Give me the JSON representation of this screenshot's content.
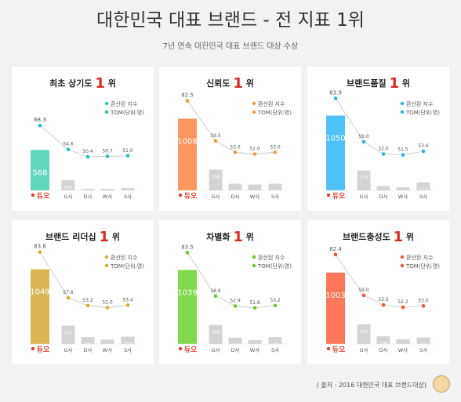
{
  "header": {
    "title": "대한민국 대표 브랜드 - 전 지표 1위",
    "subtitle": "7년 연속 대한민국 대표 브랜드 대상 수상"
  },
  "legend": {
    "index_label": "환산된 지수",
    "tom_label": "TOM(단위:명)"
  },
  "footer": {
    "source": "( 출처 : 2016 대한민국 대표 브랜드대상)"
  },
  "brand_logo": "듀오",
  "chart_data": [
    {
      "type": "bar",
      "title": "최초 상기도",
      "rank": "1",
      "rank_suffix": "위",
      "categories": [
        "",
        "G사",
        "D사",
        "W사",
        "S사"
      ],
      "series": [
        {
          "name": "TOM(단위:명)",
          "values": [
            568,
            144,
            12,
            21,
            31
          ]
        },
        {
          "name": "환산된 지수",
          "values": [
            68.3,
            54.6,
            50.4,
            50.7,
            51.0
          ]
        }
      ],
      "colors": {
        "main_bar": "#5fd7bd",
        "dot": "#20c4c0",
        "other_bar": "#d4d4d4"
      }
    },
    {
      "type": "bar",
      "title": "신뢰도",
      "rank": "1",
      "rank_suffix": "위",
      "categories": [
        "",
        "G사",
        "D사",
        "W사",
        "S사"
      ],
      "series": [
        {
          "name": "TOM(단위:명)",
          "values": [
            1008,
            294,
            93,
            82,
            93
          ]
        },
        {
          "name": "환산된 지수",
          "values": [
            82.5,
            59.5,
            53.0,
            52.0,
            53.0
          ]
        }
      ],
      "colors": {
        "main_bar": "#ff965f",
        "dot": "#f79a3b",
        "other_bar": "#d4d4d4"
      }
    },
    {
      "type": "bar",
      "title": "브랜드품질",
      "rank": "1",
      "rank_suffix": "위",
      "categories": [
        "",
        "G사",
        "D사",
        "W사",
        "S사"
      ],
      "series": [
        {
          "name": "TOM(단위:명)",
          "values": [
            1050,
            279,
            62,
            46,
            113
          ]
        },
        {
          "name": "환산된 지수",
          "values": [
            83.9,
            59.0,
            52.0,
            51.5,
            53.6
          ]
        }
      ],
      "colors": {
        "main_bar": "#4ec2f7",
        "dot": "#2bb3e8",
        "other_bar": "#d4d4d4"
      }
    },
    {
      "type": "bar",
      "title": "브랜드 리더십",
      "rank": "1",
      "rank_suffix": "위",
      "categories": [
        "",
        "G사",
        "D사",
        "W사",
        "S사"
      ],
      "series": [
        {
          "name": "TOM(단위:명)",
          "values": [
            1049,
            257,
            98,
            62,
            104
          ]
        },
        {
          "name": "환산된 지수",
          "values": [
            83.8,
            57.6,
            53.2,
            52.0,
            53.4
          ]
        }
      ],
      "colors": {
        "main_bar": "#dcb655",
        "dot": "#e0ac23",
        "other_bar": "#d4d4d4"
      }
    },
    {
      "type": "bar",
      "title": "차별화",
      "rank": "1",
      "rank_suffix": "위",
      "categories": [
        "",
        "G사",
        "D사",
        "W사",
        "S사"
      ],
      "series": [
        {
          "name": "TOM(단위:명)",
          "values": [
            1039,
            268,
            89,
            56,
            98
          ]
        },
        {
          "name": "환산된 지수",
          "values": [
            83.5,
            58.6,
            52.9,
            51.8,
            53.2
          ]
        }
      ],
      "colors": {
        "main_bar": "#7fd94a",
        "dot": "#66cc22",
        "other_bar": "#d4d4d4"
      }
    },
    {
      "type": "bar",
      "title": "브랜드충성도",
      "rank": "1",
      "rank_suffix": "위",
      "categories": [
        "",
        "G사",
        "D사",
        "W사",
        "S사"
      ],
      "series": [
        {
          "name": "TOM(단위:명)",
          "values": [
            1003,
            276,
            108,
            67,
            93
          ]
        },
        {
          "name": "환산된 지수",
          "values": [
            82.4,
            59.0,
            53.5,
            52.2,
            53.0
          ]
        }
      ],
      "colors": {
        "main_bar": "#ff7658",
        "dot": "#f0582e",
        "other_bar": "#d4d4d4"
      }
    }
  ]
}
